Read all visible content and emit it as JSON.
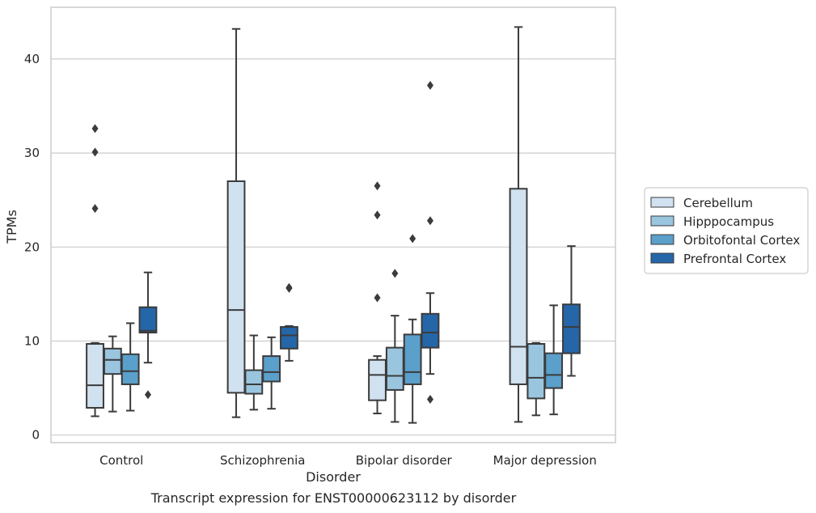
{
  "chart_data": {
    "type": "box",
    "title": "",
    "xlabel": "Disorder",
    "ylabel": "TPMs",
    "caption": "Transcript expression for ENST00000623112 by disorder",
    "ylim": [
      -0.8,
      45.5
    ],
    "yticks": [
      0,
      10,
      20,
      30,
      40
    ],
    "grid": "horizontal",
    "legend_position": "right",
    "categories": [
      "Control",
      "Schizophrenia",
      "Bipolar disorder",
      "Major depression"
    ],
    "series": [
      {
        "name": "Cerebellum",
        "color": "#d0e1f0",
        "boxes": [
          {
            "whislo": 2.0,
            "q1": 2.9,
            "med": 5.3,
            "q3": 9.7,
            "whishi": 9.8,
            "fliers": [
              24.1,
              30.1,
              32.6
            ]
          },
          {
            "whislo": 1.9,
            "q1": 4.5,
            "med": 13.3,
            "q3": 27.0,
            "whishi": 43.2,
            "fliers": []
          },
          {
            "whislo": 2.3,
            "q1": 3.7,
            "med": 6.4,
            "q3": 8.0,
            "whishi": 8.4,
            "fliers": [
              14.6,
              23.4,
              26.5
            ]
          },
          {
            "whislo": 1.4,
            "q1": 5.4,
            "med": 9.4,
            "q3": 26.2,
            "whishi": 43.4,
            "fliers": []
          }
        ]
      },
      {
        "name": "Hipppocampus",
        "color": "#9ac5df",
        "boxes": [
          {
            "whislo": 2.5,
            "q1": 6.5,
            "med": 8.0,
            "q3": 9.2,
            "whishi": 10.5,
            "fliers": []
          },
          {
            "whislo": 2.7,
            "q1": 4.4,
            "med": 5.4,
            "q3": 6.9,
            "whishi": 10.6,
            "fliers": []
          },
          {
            "whislo": 1.4,
            "q1": 4.8,
            "med": 6.3,
            "q3": 9.3,
            "whishi": 12.7,
            "fliers": [
              17.2
            ]
          },
          {
            "whislo": 2.1,
            "q1": 3.9,
            "med": 6.1,
            "q3": 9.7,
            "whishi": 9.8,
            "fliers": []
          }
        ]
      },
      {
        "name": "Orbitofontal Cortex",
        "color": "#5b9fcb",
        "boxes": [
          {
            "whislo": 2.6,
            "q1": 5.4,
            "med": 6.8,
            "q3": 8.6,
            "whishi": 11.9,
            "fliers": []
          },
          {
            "whislo": 2.8,
            "q1": 5.7,
            "med": 6.7,
            "q3": 8.4,
            "whishi": 10.4,
            "fliers": []
          },
          {
            "whislo": 1.3,
            "q1": 5.4,
            "med": 6.7,
            "q3": 10.7,
            "whishi": 12.3,
            "fliers": [
              20.9
            ]
          },
          {
            "whislo": 2.2,
            "q1": 5.0,
            "med": 6.4,
            "q3": 8.7,
            "whishi": 13.8,
            "fliers": []
          }
        ]
      },
      {
        "name": "Prefrontal Cortex",
        "color": "#2566a8",
        "boxes": [
          {
            "whislo": 7.7,
            "q1": 10.9,
            "med": 11.1,
            "q3": 13.6,
            "whishi": 17.3,
            "fliers": [
              4.3
            ]
          },
          {
            "whislo": 7.9,
            "q1": 9.2,
            "med": 10.6,
            "q3": 11.5,
            "whishi": 11.6,
            "fliers": [
              15.6,
              15.7
            ]
          },
          {
            "whislo": 6.5,
            "q1": 9.3,
            "med": 10.9,
            "q3": 12.9,
            "whishi": 15.1,
            "fliers": [
              3.8,
              22.8,
              37.2
            ]
          },
          {
            "whislo": 6.3,
            "q1": 8.7,
            "med": 11.5,
            "q3": 13.9,
            "whishi": 20.1,
            "fliers": []
          }
        ]
      }
    ]
  }
}
